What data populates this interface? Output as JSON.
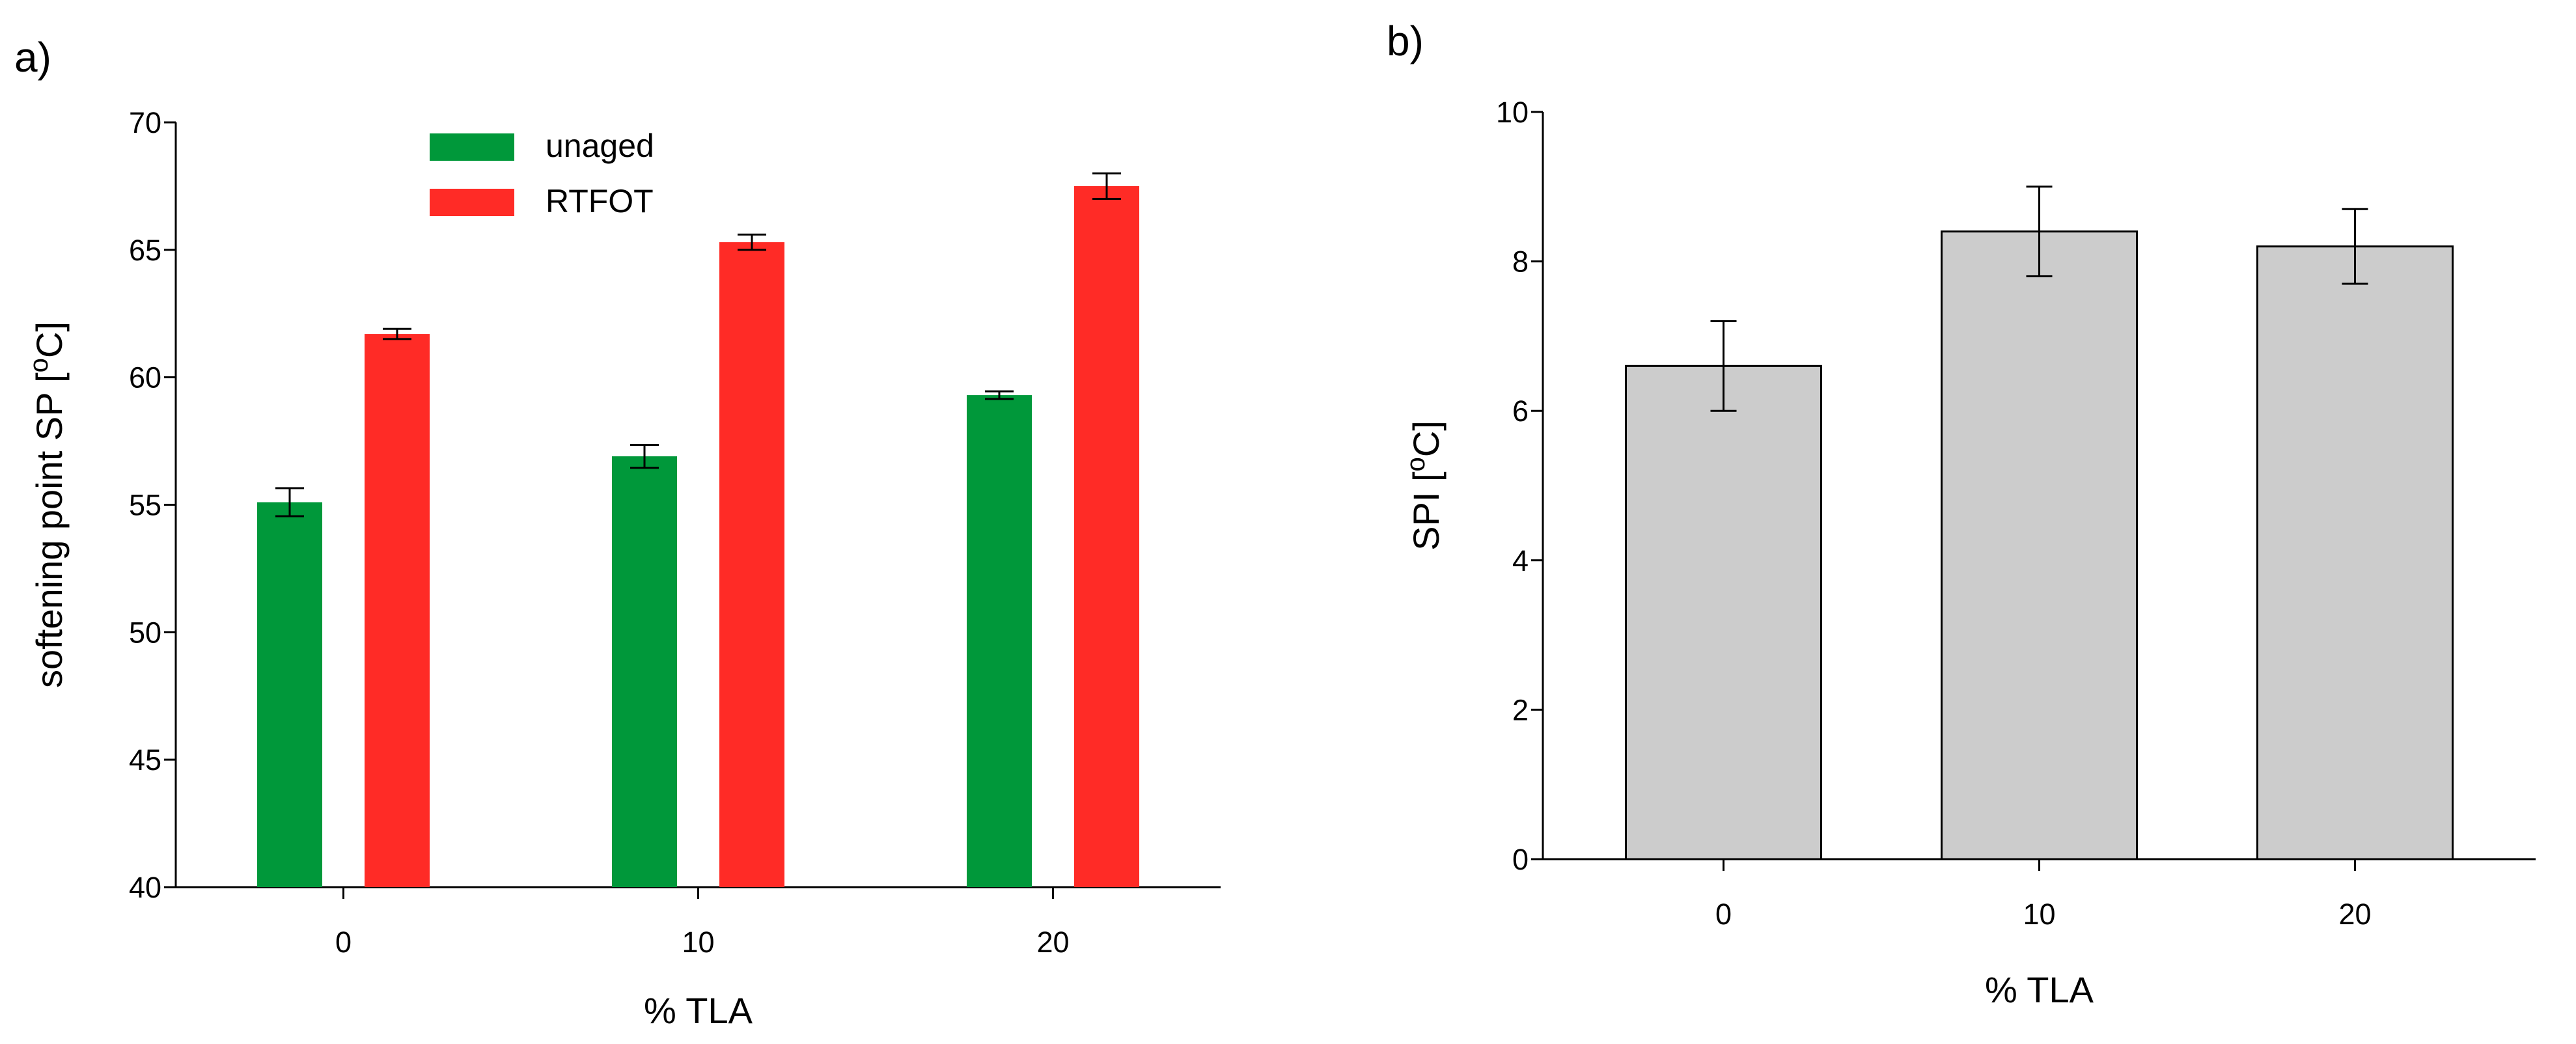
{
  "figure": {
    "panel_a_label": "a)",
    "panel_b_label": "b)"
  },
  "chart_data": [
    {
      "type": "bar",
      "panel": "a)",
      "categories": [
        "0",
        "10",
        "20"
      ],
      "series": [
        {
          "name": "unaged",
          "color": "#00983a",
          "values": [
            55.1,
            56.9,
            59.3
          ],
          "errors": [
            0.55,
            0.45,
            0.15
          ]
        },
        {
          "name": "RTFOT",
          "color": "#ff2b26",
          "values": [
            61.7,
            65.3,
            67.5
          ],
          "errors": [
            0.2,
            0.3,
            0.5
          ]
        }
      ],
      "xlabel": "% TLA",
      "ylabel_main": "softening point SP [",
      "ylabel_sup": "o",
      "ylabel_tail": "C]",
      "ylim": [
        40,
        70
      ],
      "yticks": [
        40,
        45,
        50,
        55,
        60,
        65,
        70
      ],
      "legend": "top-center",
      "grid": false
    },
    {
      "type": "bar",
      "panel": "b)",
      "categories": [
        "0",
        "10",
        "20"
      ],
      "series": [
        {
          "color": "#cccccc",
          "values": [
            6.6,
            8.4,
            8.2
          ],
          "errors": [
            0.6,
            0.6,
            0.5
          ]
        }
      ],
      "xlabel": "% TLA",
      "ylabel_main": "SPI [",
      "ylabel_sup": "o",
      "ylabel_tail": "C]",
      "ylim": [
        0,
        10
      ],
      "yticks": [
        0,
        2,
        4,
        6,
        8,
        10
      ],
      "grid": false
    }
  ]
}
